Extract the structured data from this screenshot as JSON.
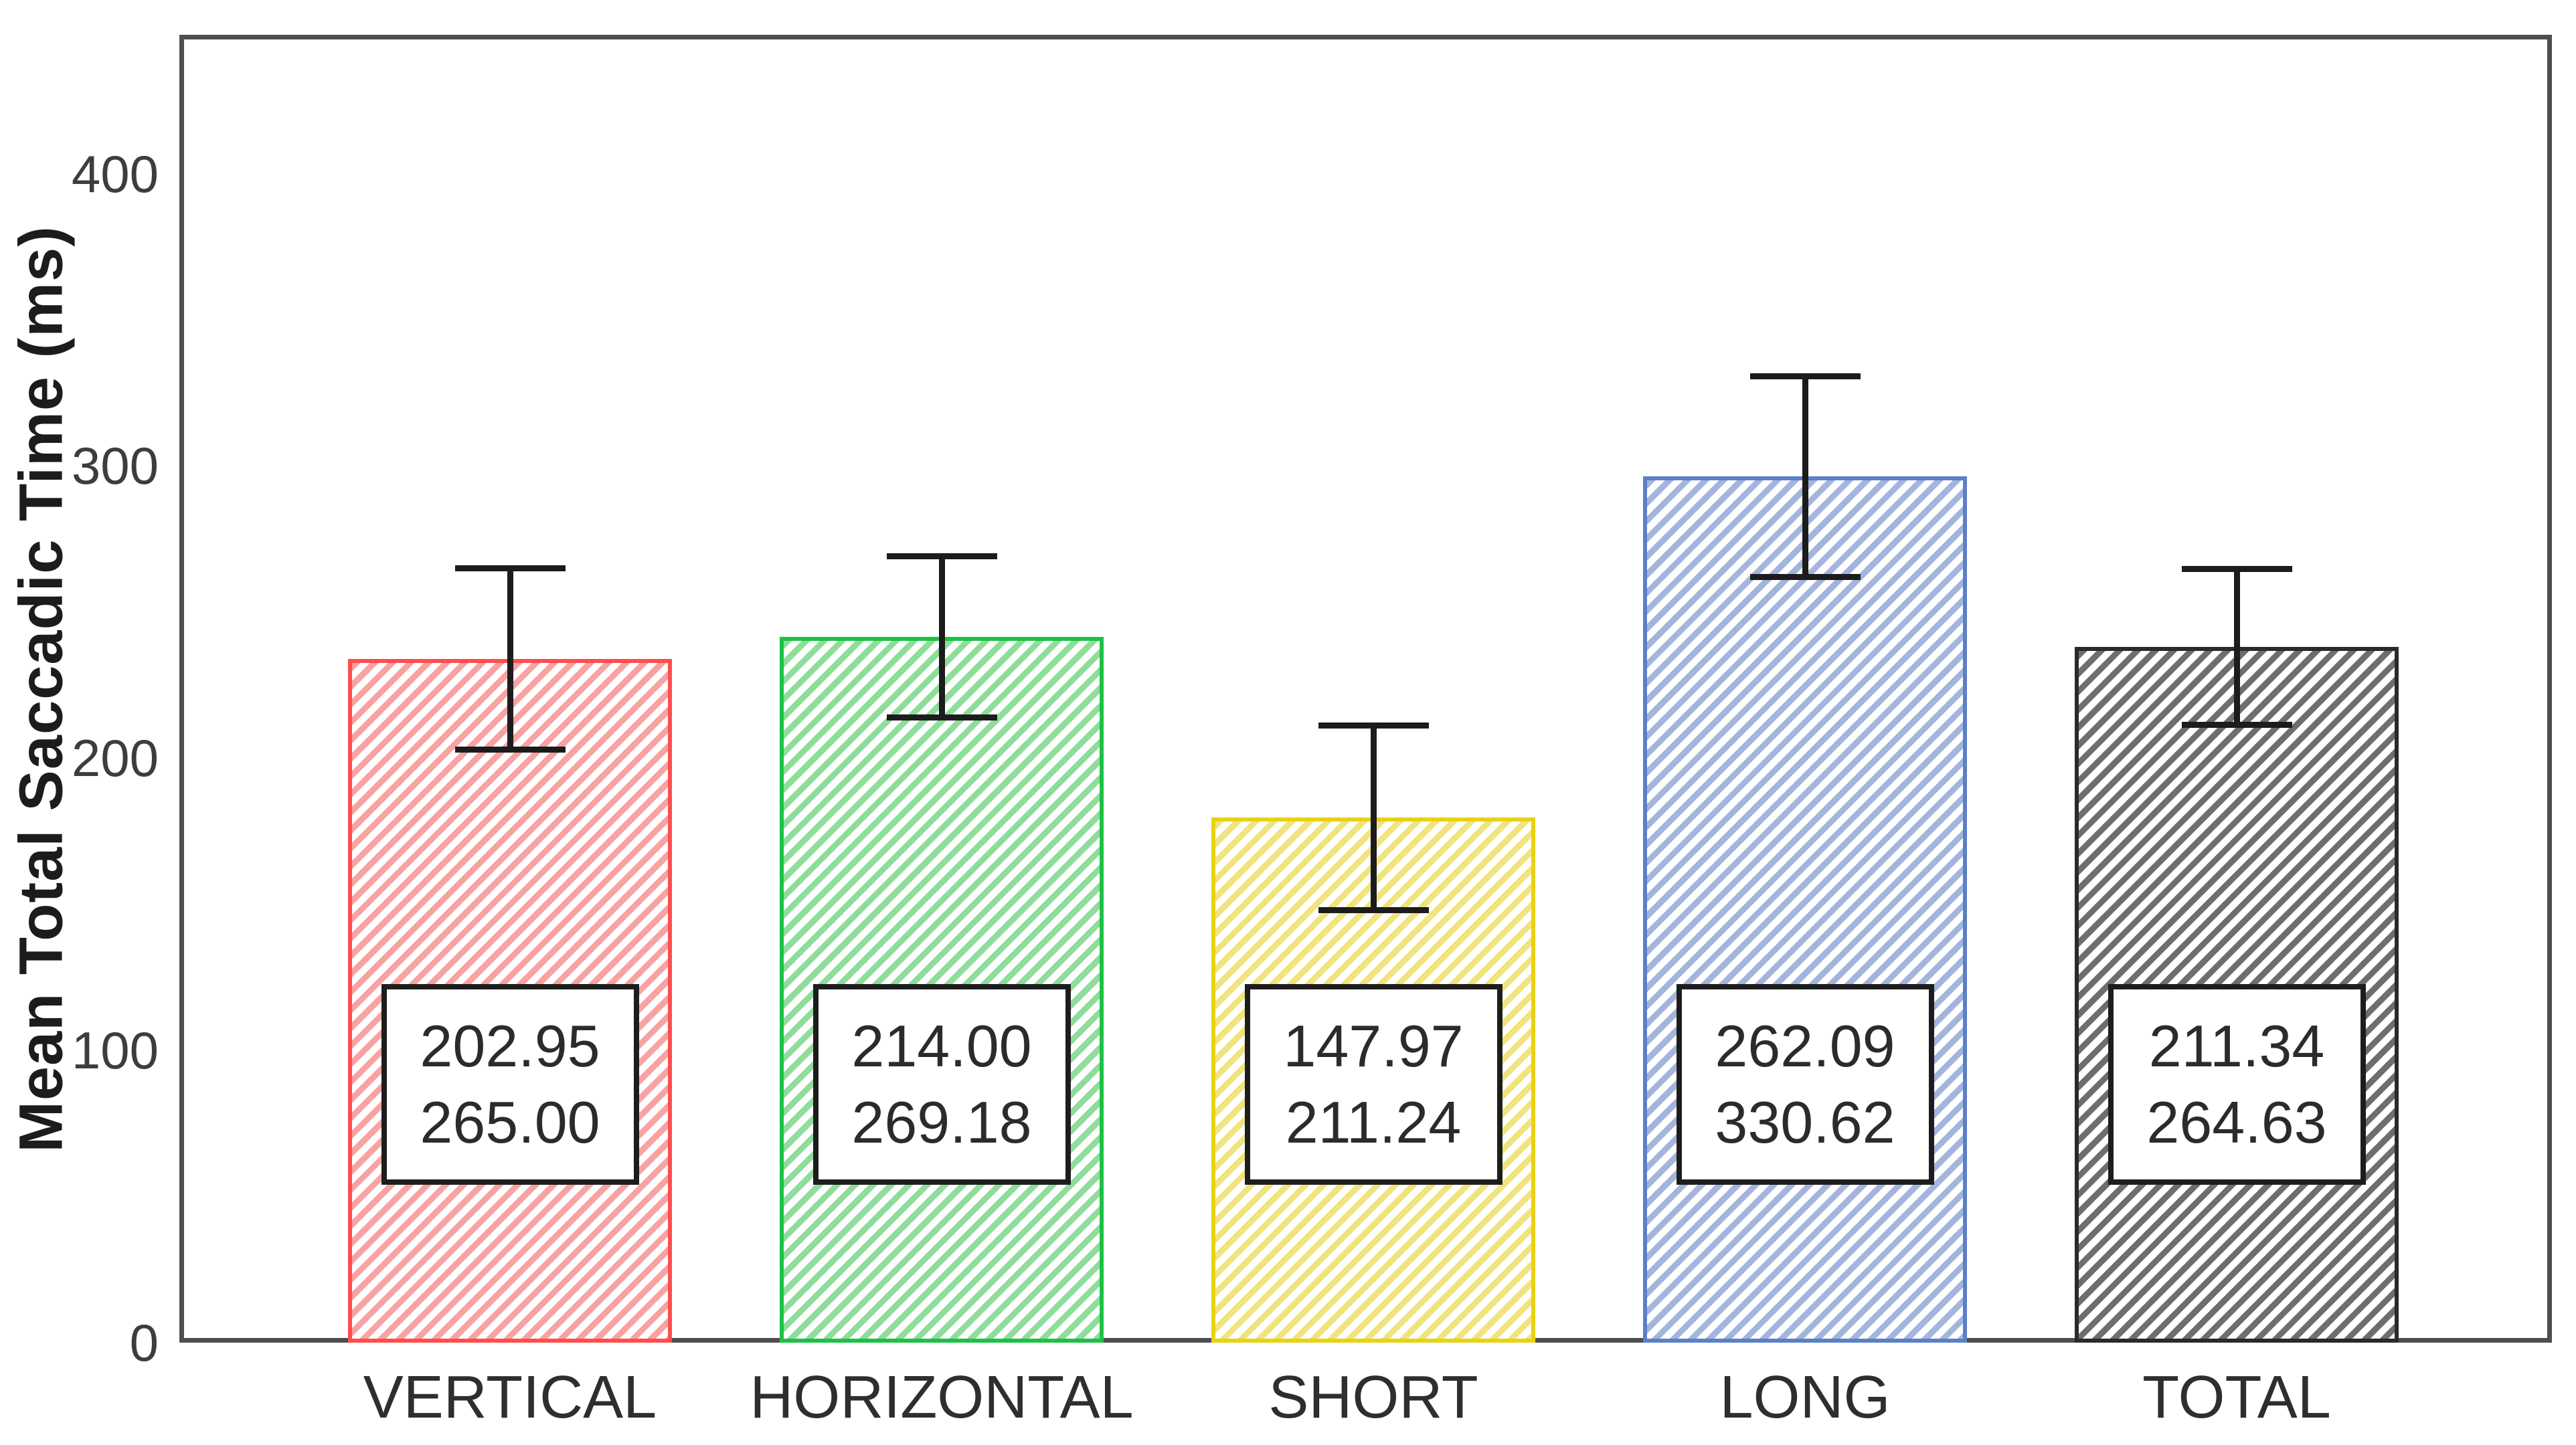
{
  "chart_data": {
    "type": "bar",
    "title": "",
    "xlabel": "",
    "ylabel": "Mean Total Saccadic Time (ms)",
    "ylim": [
      0,
      447
    ],
    "yticks": [
      "0",
      "100",
      "200",
      "300",
      "400"
    ],
    "grid": false,
    "legend": "none",
    "categories": [
      "VERTICAL",
      "HORIZONTAL",
      "SHORT",
      "LONG",
      "TOTAL"
    ],
    "bars": [
      {
        "category": "VERTICAL",
        "mean": 233.98,
        "ci_lower": 202.95,
        "ci_upper": 265.0,
        "box_lines": [
          "202.95",
          "265.00"
        ],
        "border_color": "#ff4d4d",
        "hatch_color": "#f8a2a2"
      },
      {
        "category": "HORIZONTAL",
        "mean": 241.59,
        "ci_lower": 214.0,
        "ci_upper": 269.18,
        "box_lines": [
          "214.00",
          "269.18"
        ],
        "border_color": "#1cc243",
        "hatch_color": "#8edd9a"
      },
      {
        "category": "SHORT",
        "mean": 179.61,
        "ci_lower": 147.97,
        "ci_upper": 211.24,
        "box_lines": [
          "147.97",
          "211.24"
        ],
        "border_color": "#e8d214",
        "hatch_color": "#f1e47e"
      },
      {
        "category": "LONG",
        "mean": 296.36,
        "ci_lower": 262.09,
        "ci_upper": 330.62,
        "box_lines": [
          "262.09",
          "330.62"
        ],
        "border_color": "#5b80c6",
        "hatch_color": "#a3b5dc"
      },
      {
        "category": "TOTAL",
        "mean": 237.99,
        "ci_lower": 211.34,
        "ci_upper": 264.63,
        "box_lines": [
          "211.34",
          "264.63"
        ],
        "border_color": "#2a2a2a",
        "hatch_color": "#6e6e6e"
      }
    ],
    "error_bar_color": "#1c1c1c",
    "axis_color": "#4e4e4e"
  }
}
